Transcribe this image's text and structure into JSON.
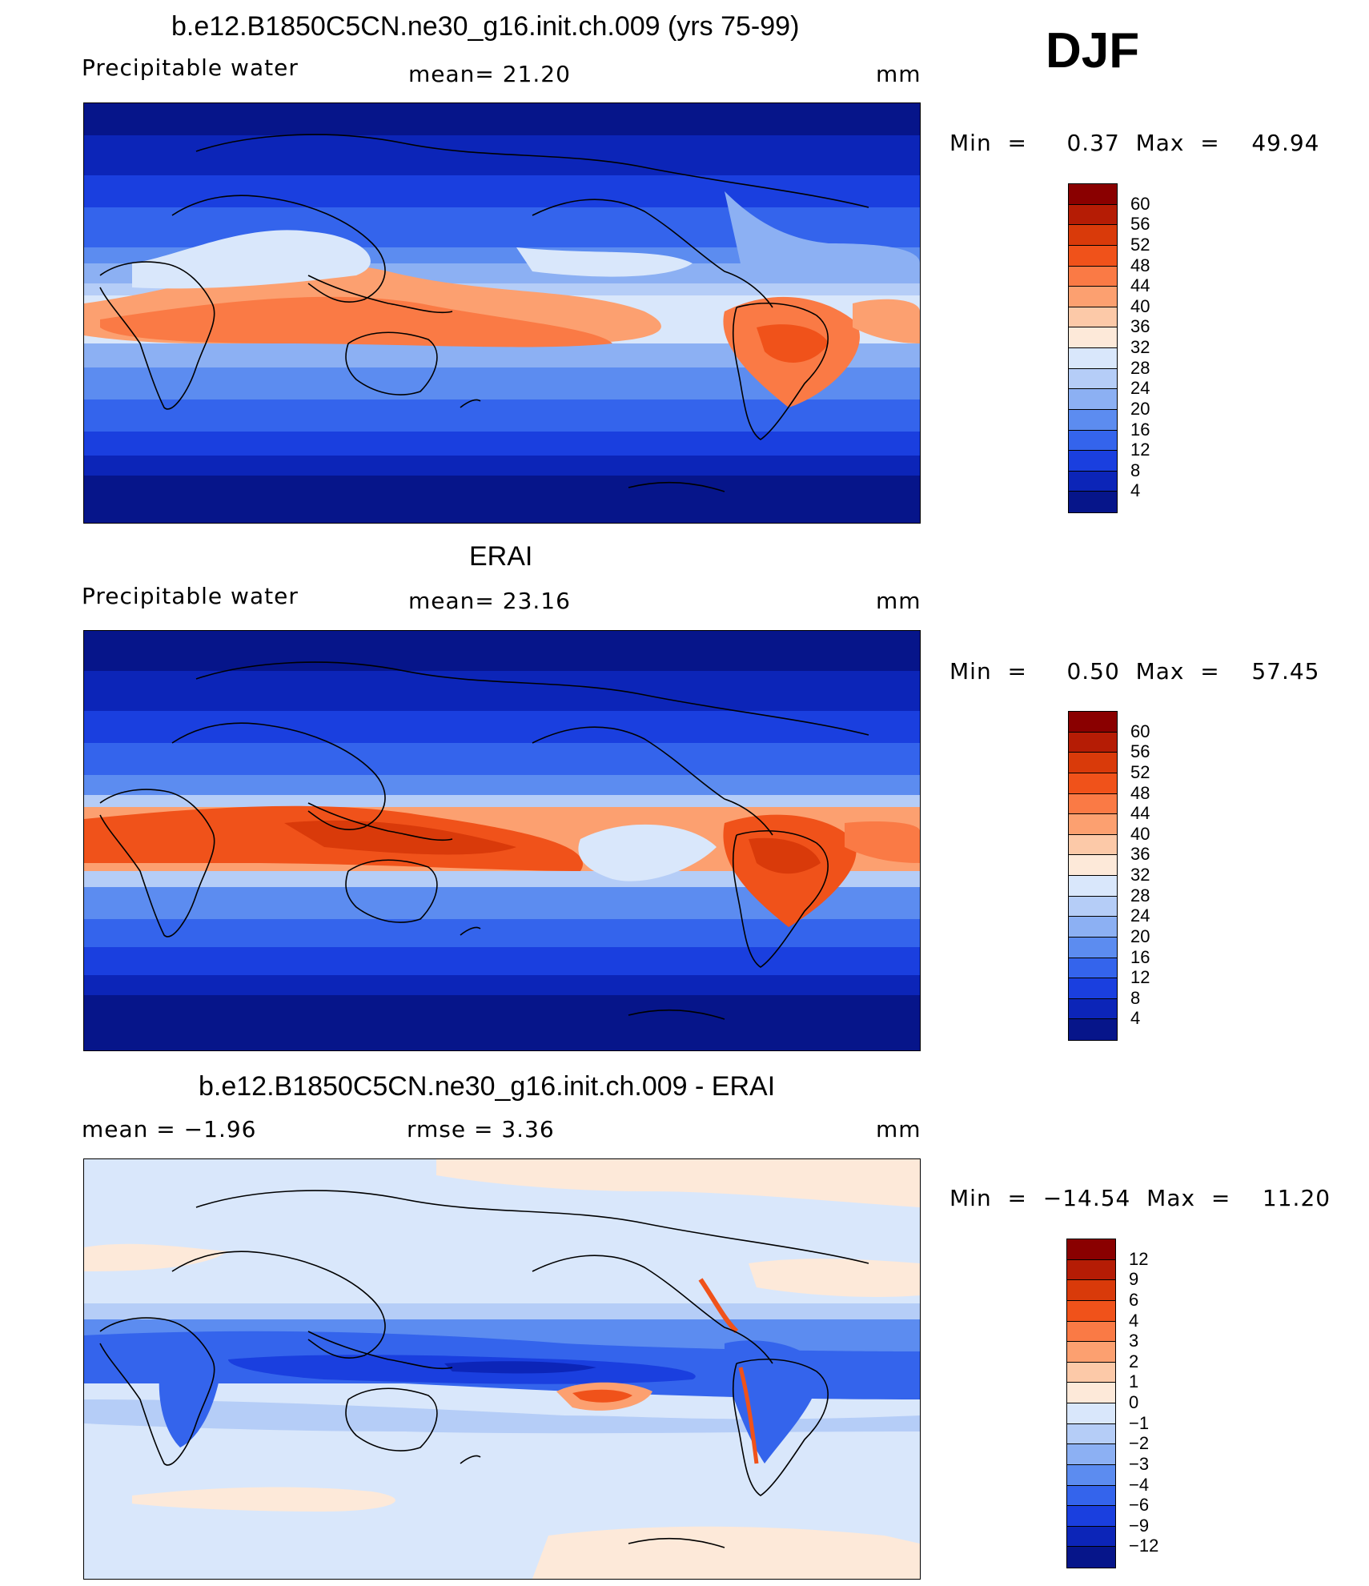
{
  "season": "DJF",
  "panels": [
    {
      "title": "b.e12.B1850C5CN.ne30_g16.init.ch.009 (yrs 75-99)",
      "left_label": "Precipitable  water",
      "center_label": "mean=   21.20",
      "units": "mm",
      "stats": "Min  =     0.37  Max  =    49.94",
      "type": "field"
    },
    {
      "title": "ERAI",
      "left_label": "Precipitable  water",
      "center_label": "mean=   23.16",
      "units": "mm",
      "stats": "Min  =     0.50  Max  =    57.45",
      "type": "field"
    },
    {
      "title": "b.e12.B1850C5CN.ne30_g16.init.ch.009 - ERAI",
      "left_label": "mean  =    −1.96",
      "center_label": "rmse  =      3.36",
      "units": "mm",
      "stats": "Min  =  −14.54  Max  =    11.20",
      "type": "diff"
    }
  ],
  "colorbars": {
    "field": {
      "levels": [
        "60",
        "56",
        "52",
        "48",
        "44",
        "40",
        "36",
        "32",
        "28",
        "24",
        "20",
        "16",
        "12",
        "8",
        "4"
      ],
      "colors": [
        "#8a0000",
        "#b51c05",
        "#d93a0a",
        "#f0521a",
        "#fa7a45",
        "#fca070",
        "#fcc9a8",
        "#fde9d9",
        "#d9e7fb",
        "#b5cdf7",
        "#8cb0f3",
        "#5c8cf0",
        "#3464ec",
        "#1a3fdf",
        "#0c25b8",
        "#06158a"
      ]
    },
    "diff": {
      "levels": [
        "12",
        "9",
        "6",
        "4",
        "3",
        "2",
        "1",
        "0",
        "−1",
        "−2",
        "−3",
        "−4",
        "−6",
        "−9",
        "−12"
      ],
      "colors": [
        "#8a0000",
        "#b51c05",
        "#d93a0a",
        "#f0521a",
        "#fa7a45",
        "#fca070",
        "#fcc9a8",
        "#fde9d9",
        "#d9e7fb",
        "#b5cdf7",
        "#8cb0f3",
        "#5c8cf0",
        "#3464ec",
        "#1a3fdf",
        "#0c25b8",
        "#06158a"
      ]
    }
  }
}
